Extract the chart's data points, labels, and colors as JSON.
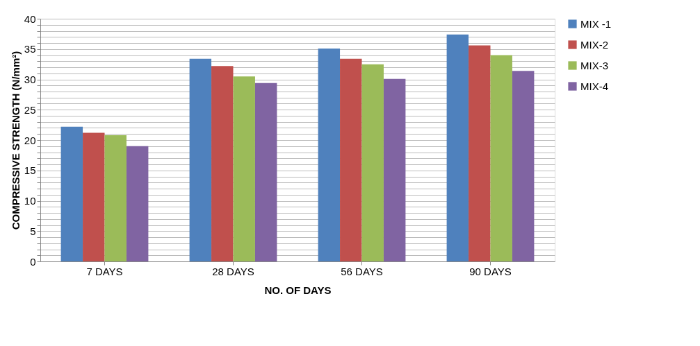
{
  "chart_data": {
    "type": "bar",
    "xlabel": "NO. OF DAYS",
    "ylabel": "COMPRESSIVE STRENGTH (N/mm²)",
    "categories": [
      "7 DAYS",
      "28 DAYS",
      "56 DAYS",
      "90 DAYS"
    ],
    "series": [
      {
        "name": "MIX -1",
        "color": "#4f81bd",
        "values": [
          22.2,
          33.4,
          35.1,
          37.4
        ]
      },
      {
        "name": "MIX-2",
        "color": "#c0504d",
        "values": [
          21.2,
          32.2,
          33.4,
          35.6
        ]
      },
      {
        "name": "MIX-3",
        "color": "#9bbb59",
        "values": [
          20.8,
          30.5,
          32.5,
          34.0
        ]
      },
      {
        "name": "MIX-4",
        "color": "#8064a2",
        "values": [
          19.0,
          29.4,
          30.1,
          31.4
        ]
      }
    ],
    "ylim": [
      0,
      40
    ],
    "yticks": [
      0,
      {
        "value": 1,
        "label": null
      },
      {
        "value": 2,
        "label": null
      },
      {
        "value": 3,
        "label": null
      },
      {
        "value": 4,
        "label": null
      },
      5,
      {
        "value": 6,
        "label": null
      },
      {
        "value": 7,
        "label": null
      },
      {
        "value": 8,
        "label": null
      },
      {
        "value": 9,
        "label": null
      },
      10,
      {
        "value": 11,
        "label": null
      },
      {
        "value": 12,
        "label": null
      },
      {
        "value": 13,
        "label": null
      },
      {
        "value": 14,
        "label": null
      },
      15,
      {
        "value": 16,
        "label": null
      },
      {
        "value": 17,
        "label": null
      },
      {
        "value": 18,
        "label": null
      },
      {
        "value": 19,
        "label": null
      },
      20,
      {
        "value": 21,
        "label": null
      },
      {
        "value": 22,
        "label": null
      },
      {
        "value": 23,
        "label": null
      },
      {
        "value": 24,
        "label": null
      },
      25,
      {
        "value": 26,
        "label": null
      },
      {
        "value": 27,
        "label": null
      },
      {
        "value": 28,
        "label": null
      },
      {
        "value": 29,
        "label": null
      },
      30,
      {
        "value": 31,
        "label": null
      },
      {
        "value": 32,
        "label": null
      },
      {
        "value": 33,
        "label": null
      },
      {
        "value": 34,
        "label": null
      },
      35,
      {
        "value": 36,
        "label": null
      },
      {
        "value": 37,
        "label": null
      },
      {
        "value": 38,
        "label": null
      },
      {
        "value": 39,
        "label": null
      },
      40
    ],
    "grid": "y",
    "legend": "right"
  }
}
